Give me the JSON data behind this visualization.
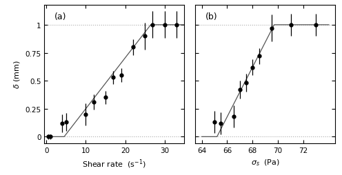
{
  "panel_a": {
    "x": [
      0.5,
      1.0,
      4.0,
      5.0,
      10.0,
      12.0,
      15.0,
      17.0,
      19.0,
      22.0,
      25.0,
      27.0,
      30.0,
      33.0
    ],
    "y": [
      0.0,
      0.0,
      0.12,
      0.13,
      0.2,
      0.31,
      0.35,
      0.53,
      0.55,
      0.8,
      0.9,
      1.0,
      1.0,
      1.0
    ],
    "yerr": [
      0.02,
      0.02,
      0.08,
      0.08,
      0.1,
      0.07,
      0.06,
      0.06,
      0.06,
      0.07,
      0.12,
      0.12,
      0.12,
      0.12
    ],
    "fit_x": [
      0.0,
      4.5,
      26.5,
      35.0
    ],
    "fit_y": [
      0.0,
      0.0,
      1.0,
      1.0
    ],
    "xlabel": "Shear rate  (s$^{-1}$)",
    "ylabel": "$\\delta$ (mm)",
    "label": "(a)",
    "xlim": [
      -0.5,
      35
    ],
    "ylim": [
      -0.06,
      1.18
    ],
    "xticks": [
      0,
      10,
      20,
      30
    ],
    "yticks": [
      0,
      0.25,
      0.5,
      0.75,
      1.0
    ]
  },
  "panel_b": {
    "x": [
      65.0,
      65.5,
      66.5,
      67.0,
      67.5,
      68.0,
      68.5,
      69.5,
      71.0,
      73.0
    ],
    "y": [
      0.13,
      0.12,
      0.18,
      0.42,
      0.48,
      0.62,
      0.72,
      0.97,
      1.0,
      1.0
    ],
    "yerr": [
      0.1,
      0.1,
      0.1,
      0.08,
      0.08,
      0.07,
      0.07,
      0.12,
      0.1,
      0.1
    ],
    "fit_x": [
      64.0,
      65.2,
      69.7,
      74.0
    ],
    "fit_y": [
      0.0,
      0.0,
      1.0,
      1.0
    ],
    "xlabel": "$\\sigma_s$  (Pa)",
    "ylabel": "",
    "label": "(b)",
    "xlim": [
      63.5,
      74.5
    ],
    "ylim": [
      -0.06,
      1.18
    ],
    "xticks": [
      64,
      66,
      68,
      70,
      72
    ],
    "yticks": [
      0,
      0.25,
      0.5,
      0.75,
      1.0
    ]
  },
  "hline_vals": [
    0.0,
    1.0
  ],
  "dot_color": "black",
  "line_color": "#555555",
  "hline_color": "#aaaaaa",
  "background_color": "#ffffff"
}
